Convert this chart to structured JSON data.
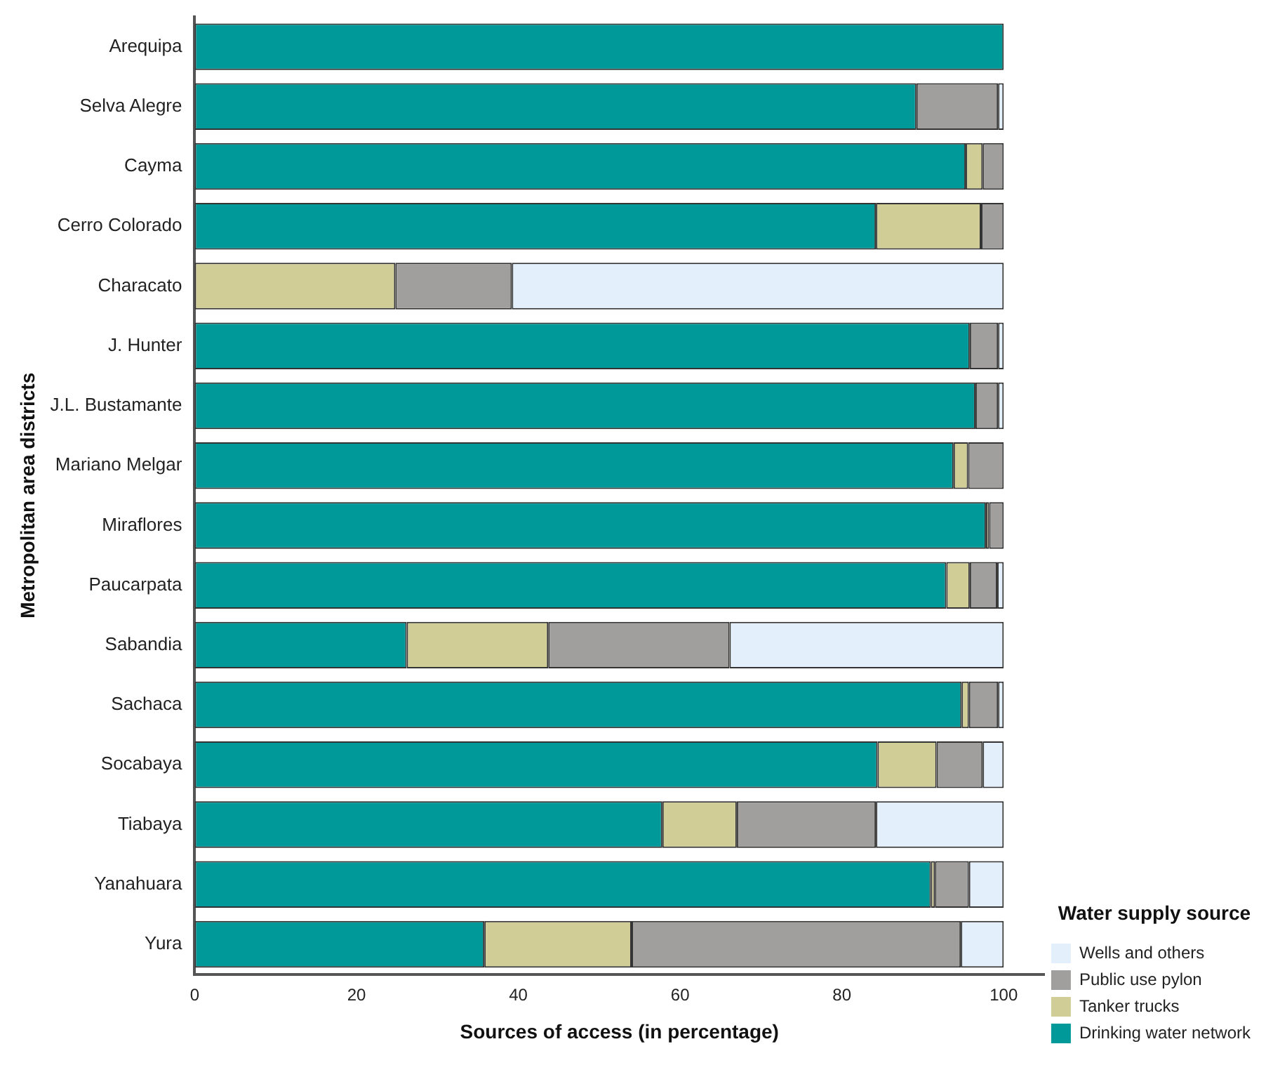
{
  "chart_data": {
    "type": "bar",
    "orientation": "horizontal",
    "stacked": true,
    "xlabel": "Sources of access (in percentage)",
    "ylabel": "Metropolitan area districts",
    "legend_title": "Water supply source",
    "categories": [
      "Arequipa",
      "Selva Alegre",
      "Cayma",
      "Cerro Colorado",
      "Characato",
      "J. Hunter",
      "J.L. Bustamante",
      "Mariano Melgar",
      "Miraflores",
      "Paucarpata",
      "Sabandia",
      "Sachaca",
      "Socabaya",
      "Tiabaya",
      "Yanahuara",
      "Yura"
    ],
    "series": [
      {
        "name": "Drinking water network",
        "color": "#009999",
        "values": [
          100,
          89.2,
          95.3,
          84.2,
          0,
          95.8,
          96.5,
          93.8,
          97.8,
          92.9,
          26.2,
          94.8,
          84.4,
          57.8,
          91.0,
          35.8
        ]
      },
      {
        "name": "Tanker trucks",
        "color": "#d1cd97",
        "values": [
          0,
          0,
          2.1,
          13.0,
          24.8,
          0,
          0,
          1.8,
          0.4,
          2.9,
          17.5,
          0.9,
          7.3,
          9.2,
          0.5,
          18.2
        ]
      },
      {
        "name": "Public use pylon",
        "color": "#a09f9d",
        "values": [
          0,
          10.1,
          2.6,
          2.8,
          14.4,
          3.5,
          2.8,
          4.4,
          1.8,
          3.4,
          22.4,
          3.6,
          5.7,
          17.2,
          4.2,
          40.7
        ]
      },
      {
        "name": "Wells and others",
        "color": "#e3effb",
        "values": [
          0,
          0.7,
          0,
          0,
          60.8,
          0.7,
          0.7,
          0,
          0,
          0.8,
          33.9,
          0.7,
          2.6,
          15.8,
          4.3,
          5.3
        ]
      }
    ],
    "xlim": [
      0,
      105
    ],
    "xticks": [
      0,
      20,
      40,
      60,
      80,
      100
    ],
    "grid": false,
    "legend": "bottom right"
  }
}
